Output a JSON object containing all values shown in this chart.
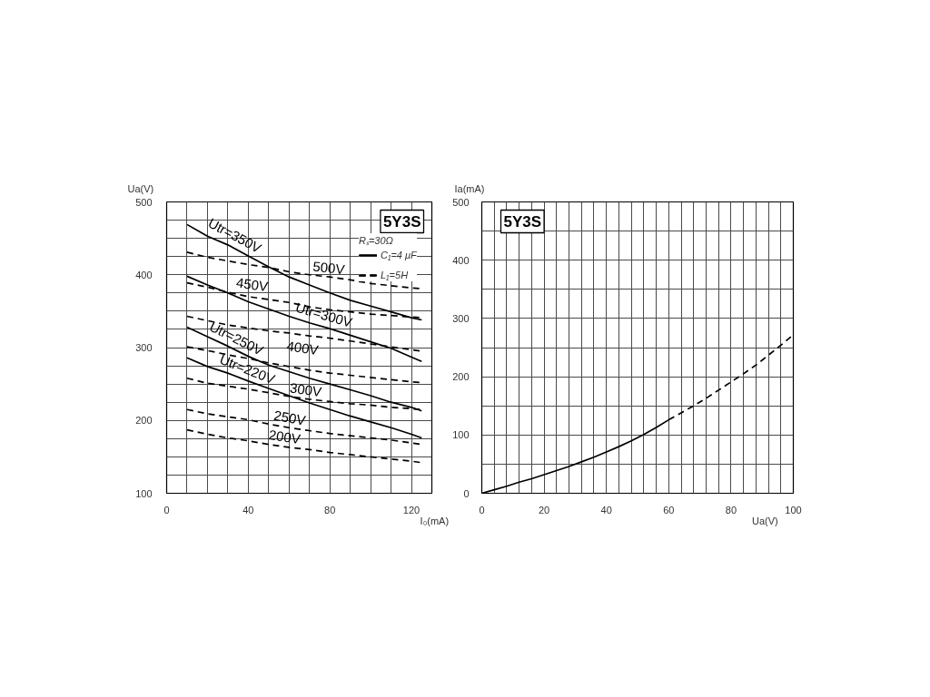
{
  "chart_data": [
    {
      "type": "line",
      "title": "5Y3S",
      "xlabel": "I₀(mA)",
      "ylabel": "Ua(V)",
      "legend_title": "Rₛ=30Ω",
      "annotations": [
        "C₁=4 μF",
        "L₁=5H"
      ],
      "legend": "top right",
      "grid": true,
      "xlim": [
        0,
        130
      ],
      "ylim": [
        100,
        500
      ],
      "xticks": [
        0,
        {
          "value": 10,
          "label": null
        },
        {
          "value": 20,
          "label": null
        },
        {
          "value": 30,
          "label": null
        },
        40,
        {
          "value": 50,
          "label": null
        },
        {
          "value": 60,
          "label": null
        },
        {
          "value": 70,
          "label": null
        },
        80,
        {
          "value": 90,
          "label": null
        },
        {
          "value": 100,
          "label": null
        },
        {
          "value": 110,
          "label": null
        },
        120
      ],
      "yticks": [
        100,
        {
          "value": 125,
          "label": null
        },
        {
          "value": 150,
          "label": null
        },
        {
          "value": 175,
          "label": null
        },
        200,
        {
          "value": 225,
          "label": null
        },
        {
          "value": 250,
          "label": null
        },
        {
          "value": 275,
          "label": null
        },
        300,
        {
          "value": 325,
          "label": null
        },
        {
          "value": 350,
          "label": null
        },
        {
          "value": 375,
          "label": null
        },
        400,
        {
          "value": 425,
          "label": null
        },
        {
          "value": 450,
          "label": null
        },
        {
          "value": 475,
          "label": null
        },
        500
      ],
      "x": [
        10,
        20,
        30,
        40,
        50,
        60,
        70,
        80,
        90,
        100,
        110,
        120,
        125
      ],
      "series": [
        {
          "name": "Utr=350V",
          "color": "#000000",
          "line_style": "solid",
          "values": [
            469,
            453,
            441,
            426,
            411,
            397,
            386,
            375,
            365,
            357,
            349,
            341,
            338
          ]
        },
        {
          "name": "Utr=300V",
          "color": "#000000",
          "line_style": "solid",
          "values": [
            398,
            386,
            375,
            363,
            353,
            343,
            334,
            326,
            317,
            308,
            299,
            287,
            281
          ]
        },
        {
          "name": "Utr=250V",
          "color": "#000000",
          "line_style": "solid",
          "values": [
            328,
            315,
            302,
            288,
            276,
            267,
            258,
            250,
            242,
            234,
            225,
            218,
            213
          ]
        },
        {
          "name": "Utr=220V",
          "color": "#000000",
          "line_style": "solid",
          "values": [
            286,
            274,
            265,
            254,
            244,
            234,
            224,
            215,
            206,
            198,
            190,
            181,
            176
          ]
        },
        {
          "name": "500V",
          "color": "#000000",
          "line_style": "dashed",
          "values": [
            431,
            424,
            419,
            414,
            410,
            404,
            400,
            397,
            393,
            388,
            385,
            382,
            381
          ]
        },
        {
          "name": "450V",
          "color": "#000000",
          "line_style": "dashed",
          "values": [
            389,
            383,
            376,
            370,
            366,
            362,
            356,
            352,
            349,
            346,
            344,
            342,
            341
          ]
        },
        {
          "name": "400V",
          "color": "#000000",
          "line_style": "dashed",
          "values": [
            343,
            337,
            331,
            327,
            323,
            320,
            316,
            313,
            309,
            305,
            301,
            297,
            295
          ]
        },
        {
          "color": "#000000",
          "line_style": "dashed",
          "values": [
            301,
            296,
            290,
            285,
            279,
            274,
            269,
            265,
            262,
            259,
            256,
            253,
            252
          ]
        },
        {
          "name": "300V",
          "color": "#000000",
          "line_style": "dashed",
          "values": [
            258,
            251,
            247,
            243,
            238,
            233,
            229,
            226,
            223,
            221,
            218,
            216,
            215
          ]
        },
        {
          "name": "250V",
          "color": "#000000",
          "line_style": "dashed",
          "values": [
            215,
            209,
            205,
            201,
            195,
            190,
            186,
            182,
            179,
            176,
            173,
            169,
            167
          ]
        },
        {
          "name": "200V",
          "color": "#000000",
          "line_style": "dashed",
          "values": [
            187,
            181,
            176,
            172,
            167,
            163,
            160,
            156,
            153,
            150,
            147,
            144,
            142
          ]
        }
      ]
    },
    {
      "type": "line",
      "title": "5Y3S",
      "xlabel": "Ua(V)",
      "ylabel": "Ia(mA)",
      "grid": true,
      "xlim": [
        0,
        100
      ],
      "ylim": [
        0,
        500
      ],
      "xticks": [
        0,
        {
          "value": 4,
          "label": null
        },
        {
          "value": 8,
          "label": null
        },
        {
          "value": 12,
          "label": null
        },
        {
          "value": 16,
          "label": null
        },
        20,
        {
          "value": 24,
          "label": null
        },
        {
          "value": 28,
          "label": null
        },
        {
          "value": 32,
          "label": null
        },
        {
          "value": 36,
          "label": null
        },
        40,
        {
          "value": 44,
          "label": null
        },
        {
          "value": 48,
          "label": null
        },
        {
          "value": 52,
          "label": null
        },
        {
          "value": 56,
          "label": null
        },
        60,
        {
          "value": 64,
          "label": null
        },
        {
          "value": 68,
          "label": null
        },
        {
          "value": 72,
          "label": null
        },
        {
          "value": 76,
          "label": null
        },
        80,
        {
          "value": 84,
          "label": null
        },
        {
          "value": 88,
          "label": null
        },
        {
          "value": 92,
          "label": null
        },
        {
          "value": 96,
          "label": null
        },
        100
      ],
      "yticks": [
        0,
        {
          "value": 50,
          "label": null
        },
        100,
        {
          "value": 150,
          "label": null
        },
        200,
        {
          "value": 250,
          "label": null
        },
        300,
        {
          "value": 350,
          "label": null
        },
        400,
        {
          "value": 450,
          "label": null
        },
        500
      ],
      "series": [
        {
          "color": "#000000",
          "line_style": "solid",
          "x": [
            0,
            4,
            8,
            12,
            16,
            20,
            24,
            28,
            32,
            36,
            40,
            44,
            48,
            52,
            56,
            60
          ],
          "values": [
            0,
            6,
            12,
            19,
            25,
            32,
            39,
            46,
            54,
            62,
            71,
            80,
            90,
            101,
            113,
            126
          ]
        },
        {
          "color": "#000000",
          "line_style": "dashed",
          "x": [
            60,
            64,
            68,
            72,
            76,
            80,
            84,
            88,
            92,
            96,
            100
          ],
          "values": [
            126,
            138,
            150,
            163,
            177,
            191,
            205,
            220,
            237,
            254,
            272
          ]
        }
      ]
    }
  ]
}
